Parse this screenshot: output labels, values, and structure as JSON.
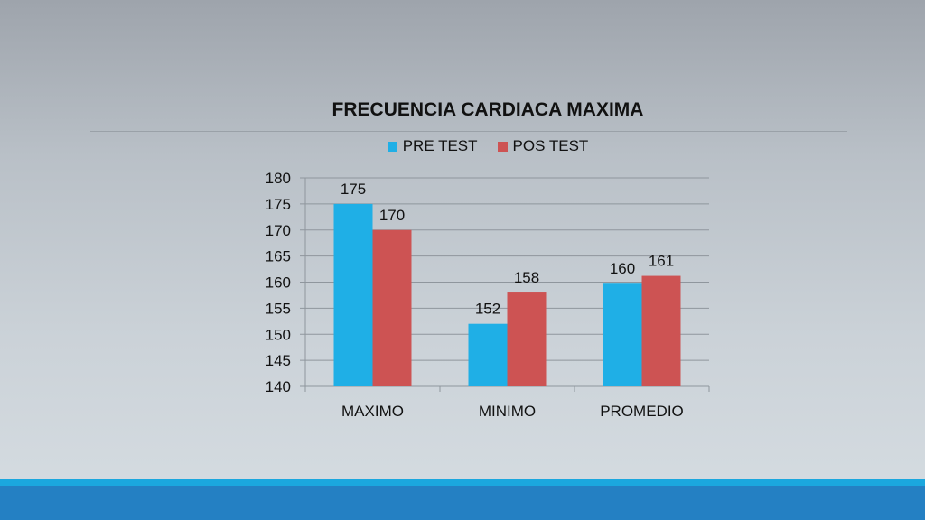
{
  "chart_data": {
    "type": "bar",
    "title": "FRECUENCIA CARDIACA MAXIMA",
    "categories": [
      "MAXIMO",
      "MINIMO",
      "PROMEDIO"
    ],
    "series": [
      {
        "name": "PRE TEST",
        "values": [
          175,
          152,
          159.7
        ],
        "labels": [
          "175",
          "152",
          "160"
        ],
        "color": "#1fafe6"
      },
      {
        "name": "POS TEST",
        "values": [
          170,
          158,
          161.2
        ],
        "labels": [
          "170",
          "158",
          "161"
        ],
        "color": "#cd5353"
      }
    ],
    "ylim": [
      140,
      180
    ],
    "yticks": [
      140,
      145,
      150,
      155,
      160,
      165,
      170,
      175,
      180
    ],
    "grid": true,
    "legend_position": "top"
  },
  "colors": {
    "footer_light": "#1ba7de",
    "footer_dark": "#2480c3"
  }
}
